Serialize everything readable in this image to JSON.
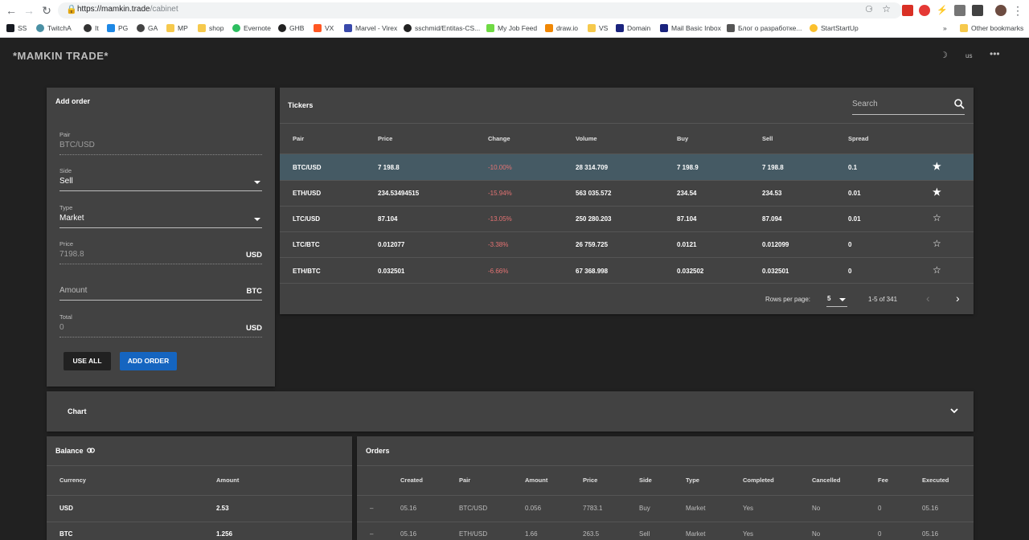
{
  "browser": {
    "url_host": "https://mamkin.trade",
    "url_path": "/cabinet",
    "bookmarks": [
      "SS",
      "TwitchA",
      "It",
      "PG",
      "GA",
      "MP",
      "shop",
      "Evernote",
      "GHB",
      "VX",
      "Marvel - Virex",
      "sschmid/Entitas-CS...",
      "My Job Feed",
      "draw.io",
      "VS",
      "Domain",
      "Mail Basic Inbox",
      "Блог о разработке...",
      "StartStartUp"
    ],
    "other_bookmarks": "Other bookmarks",
    "more": "»"
  },
  "app": {
    "title": "*MAMKIN TRADE*",
    "lang": "us"
  },
  "add_order": {
    "title": "Add order",
    "pair_label": "Pair",
    "pair_value": "BTC/USD",
    "side_label": "Side",
    "side_value": "Sell",
    "type_label": "Type",
    "type_value": "Market",
    "price_label": "Price",
    "price_value": "7198.8",
    "price_suffix": "USD",
    "amount_placeholder": "Amount",
    "amount_suffix": "BTC",
    "total_label": "Total",
    "total_value": "0",
    "total_suffix": "USD",
    "use_all": "USE ALL",
    "add_order": "ADD ORDER",
    "primary_color": "#1565c0"
  },
  "tickers": {
    "title": "Tickers",
    "search_placeholder": "Search",
    "headers": [
      "Pair",
      "Price",
      "Change",
      "Volume",
      "Buy",
      "Sell",
      "Spread"
    ],
    "rows": [
      {
        "pair": "BTC/USD",
        "price": "7 198.8",
        "change": "-10.00%",
        "volume": "28 314.709",
        "buy": "7 198.9",
        "sell": "7 198.8",
        "spread": "0.1",
        "fav": true,
        "selected": true
      },
      {
        "pair": "ETH/USD",
        "price": "234.53494515",
        "change": "-15.94%",
        "volume": "563 035.572",
        "buy": "234.54",
        "sell": "234.53",
        "spread": "0.01",
        "fav": true,
        "selected": false
      },
      {
        "pair": "LTC/USD",
        "price": "87.104",
        "change": "-13.05%",
        "volume": "250 280.203",
        "buy": "87.104",
        "sell": "87.094",
        "spread": "0.01",
        "fav": false,
        "selected": false
      },
      {
        "pair": "LTC/BTC",
        "price": "0.012077",
        "change": "-3.38%",
        "volume": "26 759.725",
        "buy": "0.0121",
        "sell": "0.012099",
        "spread": "0",
        "fav": false,
        "selected": false
      },
      {
        "pair": "ETH/BTC",
        "price": "0.032501",
        "change": "-6.66%",
        "volume": "67 368.998",
        "buy": "0.032502",
        "sell": "0.032501",
        "spread": "0",
        "fav": false,
        "selected": false
      }
    ],
    "rows_per_page_label": "Rows per page:",
    "rows_per_page": "5",
    "range": "1-5 of 341",
    "selected_color": "#455a64",
    "negative_color": "#e57373"
  },
  "chart": {
    "title": "Chart"
  },
  "balance": {
    "title": "Balance",
    "headers": [
      "Currency",
      "Amount"
    ],
    "rows": [
      {
        "currency": "USD",
        "amount": "2.53"
      },
      {
        "currency": "BTC",
        "amount": "1.256"
      }
    ]
  },
  "orders": {
    "title": "Orders",
    "headers": [
      "Created",
      "Pair",
      "Amount",
      "Price",
      "Side",
      "Type",
      "Completed",
      "Cancelled",
      "Fee",
      "Executed"
    ],
    "rows": [
      {
        "mark": "–",
        "created": "05.16",
        "pair": "BTC/USD",
        "amount": "0.056",
        "price": "7783.1",
        "side": "Buy",
        "type": "Market",
        "completed": "Yes",
        "cancelled": "No",
        "fee": "0",
        "executed": "05.16"
      },
      {
        "mark": "–",
        "created": "05.16",
        "pair": "ETH/USD",
        "amount": "1.66",
        "price": "263.5",
        "side": "Sell",
        "type": "Market",
        "completed": "Yes",
        "cancelled": "No",
        "fee": "0",
        "executed": "05.16"
      }
    ]
  }
}
